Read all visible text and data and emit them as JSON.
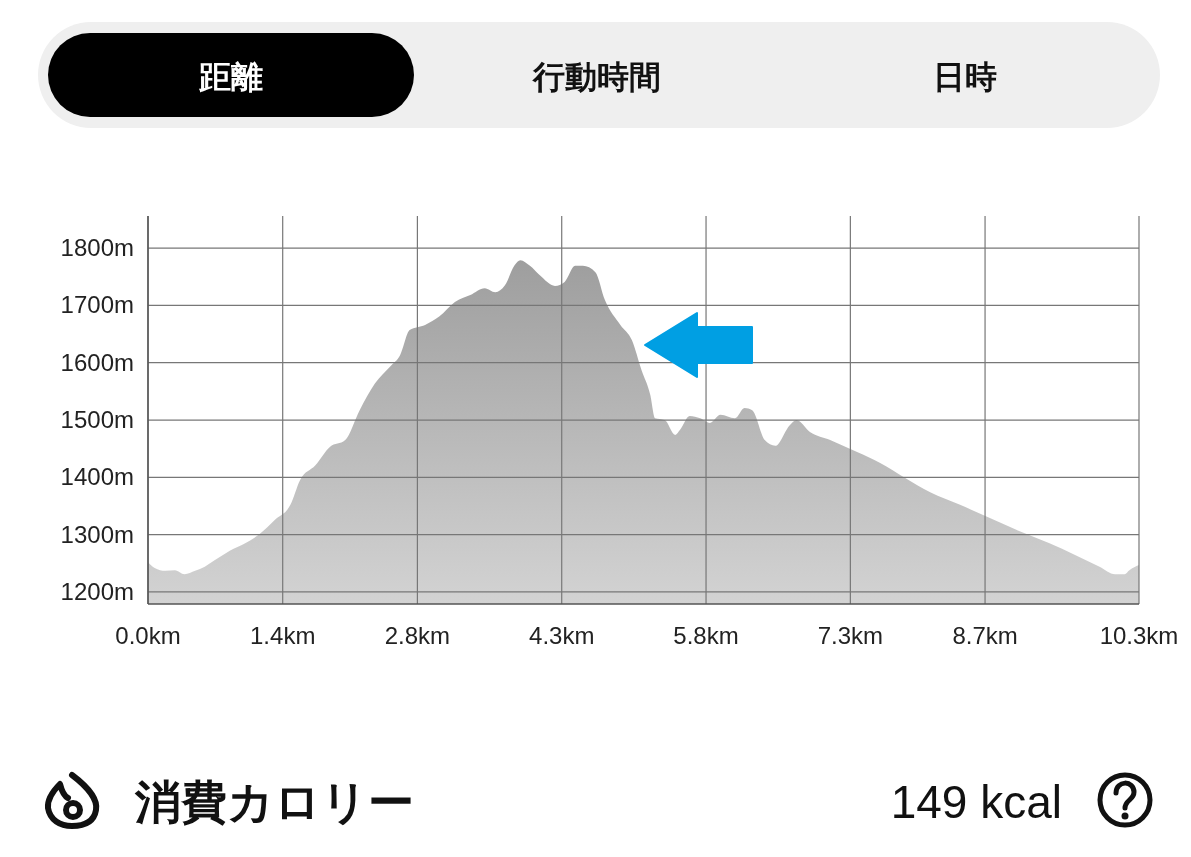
{
  "chart_data": {
    "type": "area",
    "annotations": [
      "距離",
      "行動時間",
      "日時",
      "消費カロリー",
      "149 kcal"
    ],
    "x": [
      0,
      0.07,
      0.18,
      0.28,
      0.38,
      0.49,
      0.59,
      0.7,
      0.85,
      1.01,
      1.16,
      1.32,
      1.48,
      1.58,
      1.74,
      1.89,
      2.05,
      2.2,
      2.36,
      2.52,
      2.62,
      2.72,
      2.88,
      3.03,
      3.19,
      3.35,
      3.5,
      3.61,
      3.71,
      3.81,
      3.87,
      3.97,
      4.07,
      4.23,
      4.33,
      4.44,
      4.52,
      4.65,
      4.75,
      4.91,
      5.03,
      5.13,
      5.22,
      5.27,
      5.37,
      5.48,
      5.53,
      5.63,
      5.74,
      5.84,
      5.95,
      6.1,
      6.2,
      6.28,
      6.41,
      6.52,
      6.67,
      6.74,
      6.88,
      7.09,
      7.37,
      7.61,
      7.87,
      8.13,
      8.44,
      8.75,
      9.06,
      9.37,
      9.63,
      9.89,
      10.05,
      10.15,
      10.2,
      10.3
    ],
    "series": [
      {
        "color": "#9e9e9e",
        "values": [
          1252,
          1242,
          1237,
          1238,
          1231,
          1237,
          1244,
          1256,
          1272,
          1285,
          1301,
          1326,
          1352,
          1395,
          1421,
          1453,
          1465,
          1517,
          1564,
          1594,
          1613,
          1657,
          1666,
          1681,
          1706,
          1718,
          1730,
          1723,
          1735,
          1770,
          1779,
          1769,
          1753,
          1734,
          1741,
          1769,
          1769,
          1758,
          1709,
          1666,
          1639,
          1587,
          1544,
          1503,
          1500,
          1474,
          1483,
          1507,
          1503,
          1495,
          1509,
          1503,
          1521,
          1517,
          1465,
          1455,
          1491,
          1500,
          1479,
          1465,
          1444,
          1425,
          1399,
          1374,
          1352,
          1329,
          1306,
          1285,
          1265,
          1244,
          1231,
          1231,
          1238,
          1247
        ]
      }
    ],
    "xlim": [
      0,
      10.3
    ],
    "xticks": [
      {
        "value": 0,
        "label": "0.0km"
      },
      {
        "value": 1.4,
        "label": "1.4km"
      },
      {
        "value": 2.8,
        "label": "2.8km"
      },
      {
        "value": 4.3,
        "label": "4.3km"
      },
      {
        "value": 5.8,
        "label": "5.8km"
      },
      {
        "value": 7.3,
        "label": "7.3km"
      },
      {
        "value": 8.7,
        "label": "8.7km"
      },
      {
        "value": 10.3,
        "label": "10.3km"
      }
    ],
    "ylim": [
      1179,
      1856
    ],
    "yticks": [
      {
        "value": 1200,
        "label": "1200m"
      },
      {
        "value": 1300,
        "label": "1300m"
      },
      {
        "value": 1400,
        "label": "1400m"
      },
      {
        "value": 1500,
        "label": "1500m"
      },
      {
        "value": 1600,
        "label": "1600m"
      },
      {
        "value": 1700,
        "label": "1700m"
      },
      {
        "value": 1800,
        "label": "1800m"
      }
    ],
    "grid": true
  }
}
